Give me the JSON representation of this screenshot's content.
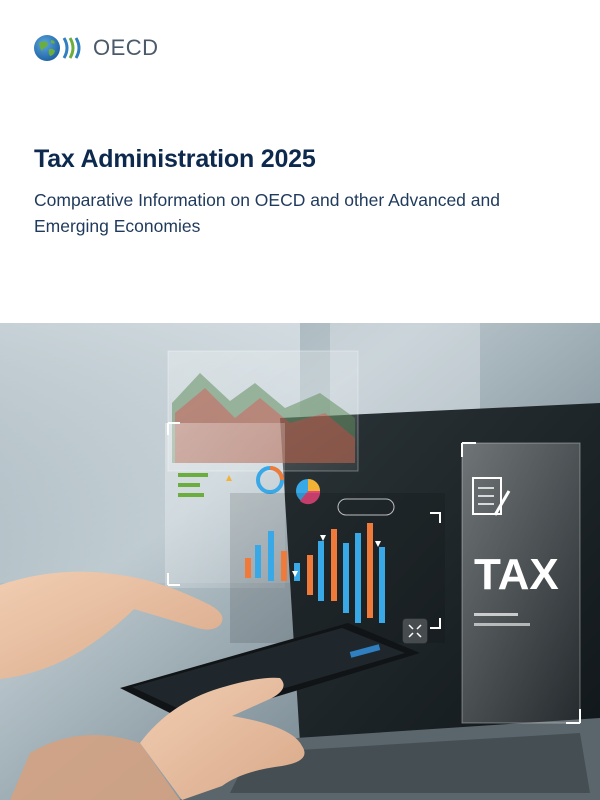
{
  "brand": {
    "name": "OECD",
    "colors": {
      "blue": "#2f7fc1",
      "green": "#6cae3e",
      "text": "#4a5a6a"
    }
  },
  "cover": {
    "title": "Tax Administration 2025",
    "subtitle": "Comparative Information on OECD and other Advanced and Emerging Economies",
    "title_color": "#0d2a4e"
  },
  "image": {
    "hologram_text": "TAX",
    "icons": [
      "checklist-icon",
      "pencil-icon",
      "donut-chart-icon",
      "pie-chart-icon",
      "expand-icon"
    ],
    "chart_colors": {
      "blue": "#38a8e6",
      "orange": "#f07a3a"
    }
  }
}
